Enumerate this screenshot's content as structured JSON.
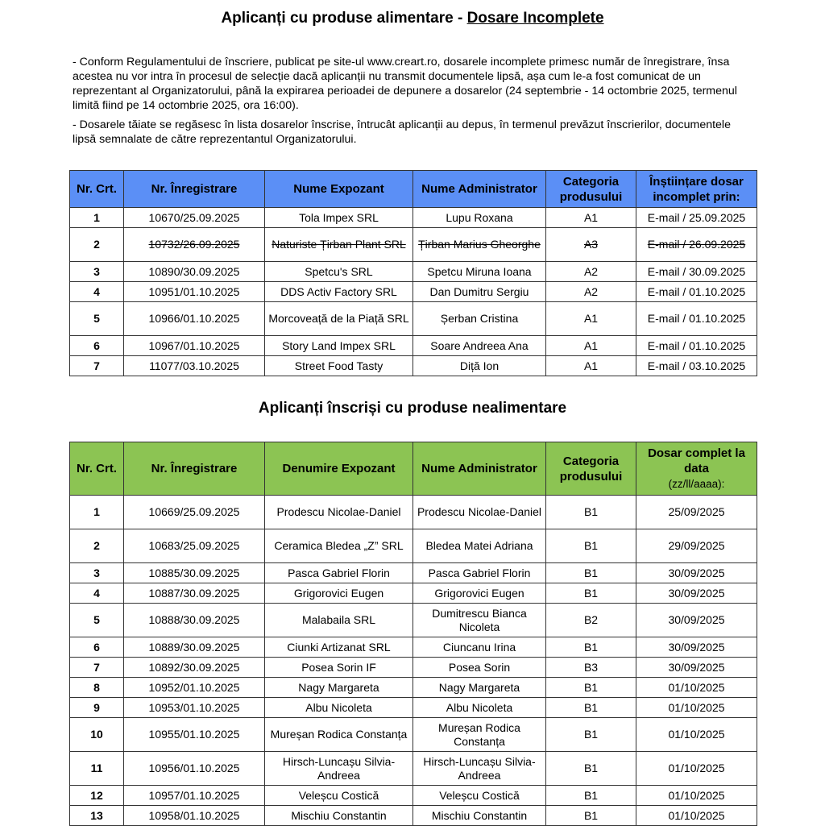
{
  "section1": {
    "title_prefix": "Aplicanți cu produse alimentare - ",
    "title_underlined": "Dosare Incomplete",
    "notes": [
      "- Conform Regulamentului de înscriere, publicat pe site-ul www.creart.ro, dosarele incomplete primesc număr de înregistrare, însa acestea nu vor intra în procesul de selecție dacă aplicanții nu transmit documentele lipsă, așa cum le-a fost comunicat de un reprezentant al Organizatorului, până la expirarea perioadei de depunere a dosarelor (24 septembrie - 14 octombrie 2025, termenul limită fiind pe 14 octombrie 2025, ora 16:00).",
      "- Dosarele tăiate se regăsesc în lista dosarelor înscrise, întrucât aplicanții au depus, în termenul prevăzut înscrierilor, documentele lipsă semnalate de către reprezentantul Organizatorului."
    ],
    "header_color": "#5b8ff6",
    "columns": [
      "Nr. Crt.",
      "Nr. Înregistrare",
      "Nume Expozant",
      "Nume Administrator",
      "Categoria produsului",
      "Înștiințare dosar incomplet prin:"
    ],
    "rows": [
      {
        "nr": "1",
        "reg": "10670/25.09.2025",
        "name": "Tola Impex SRL",
        "admin": "Lupu Roxana",
        "cat": "A1",
        "info": "E-mail / 25.09.2025",
        "struck": false
      },
      {
        "nr": "2",
        "reg": "10732/26.09.2025",
        "name": "Naturiste Țirban Plant SRL",
        "admin": "Țirban Marius Gheorghe",
        "cat": "A3",
        "info": "E-mail / 26.09.2025",
        "struck": true
      },
      {
        "nr": "3",
        "reg": "10890/30.09.2025",
        "name": "Spetcu's SRL",
        "admin": "Spetcu Miruna Ioana",
        "cat": "A2",
        "info": "E-mail / 30.09.2025",
        "struck": false
      },
      {
        "nr": "4",
        "reg": "10951/01.10.2025",
        "name": "DDS Activ Factory SRL",
        "admin": "Dan Dumitru Sergiu",
        "cat": "A2",
        "info": "E-mail / 01.10.2025",
        "struck": false
      },
      {
        "nr": "5",
        "reg": "10966/01.10.2025",
        "name": "Morcoveață de la Piață SRL",
        "admin": "Șerban Cristina",
        "cat": "A1",
        "info": "E-mail / 01.10.2025",
        "struck": false
      },
      {
        "nr": "6",
        "reg": "10967/01.10.2025",
        "name": "Story Land Impex SRL",
        "admin": "Soare Andreea Ana",
        "cat": "A1",
        "info": "E-mail / 01.10.2025",
        "struck": false
      },
      {
        "nr": "7",
        "reg": "11077/03.10.2025",
        "name": "Street Food Tasty",
        "admin": "Diță Ion",
        "cat": "A1",
        "info": "E-mail / 03.10.2025",
        "struck": false
      }
    ]
  },
  "section2": {
    "title": "Aplicanți înscriși cu produse nealimentare",
    "header_color": "#8cc453",
    "columns": [
      "Nr. Crt.",
      "Nr. Înregistrare",
      "Denumire Expozant",
      "Nume Administrator",
      "Categoria produsului",
      "Dosar complet la data"
    ],
    "date_format_note": "(zz/ll/aaaa):",
    "rows": [
      {
        "nr": "1",
        "reg": "10669/25.09.2025",
        "name": "Prodescu Nicolae-Daniel",
        "admin": "Prodescu Nicolae-Daniel",
        "cat": "B1",
        "date": "25/09/2025"
      },
      {
        "nr": "2",
        "reg": "10683/25.09.2025",
        "name": "Ceramica Bledea „Z” SRL",
        "admin": "Bledea Matei Adriana",
        "cat": "B1",
        "date": "29/09/2025"
      },
      {
        "nr": "3",
        "reg": "10885/30.09.2025",
        "name": "Pasca Gabriel Florin",
        "admin": "Pasca Gabriel Florin",
        "cat": "B1",
        "date": "30/09/2025"
      },
      {
        "nr": "4",
        "reg": "10887/30.09.2025",
        "name": "Grigorovici Eugen",
        "admin": "Grigorovici Eugen",
        "cat": "B1",
        "date": "30/09/2025"
      },
      {
        "nr": "5",
        "reg": "10888/30.09.2025",
        "name": "Malabaila SRL",
        "admin": "Dumitrescu Bianca Nicoleta",
        "cat": "B2",
        "date": "30/09/2025"
      },
      {
        "nr": "6",
        "reg": "10889/30.09.2025",
        "name": "Ciunki Artizanat SRL",
        "admin": "Ciuncanu Irina",
        "cat": "B1",
        "date": "30/09/2025"
      },
      {
        "nr": "7",
        "reg": "10892/30.09.2025",
        "name": "Posea Sorin IF",
        "admin": "Posea Sorin",
        "cat": "B3",
        "date": "30/09/2025"
      },
      {
        "nr": "8",
        "reg": "10952/01.10.2025",
        "name": "Nagy Margareta",
        "admin": "Nagy Margareta",
        "cat": "B1",
        "date": "01/10/2025"
      },
      {
        "nr": "9",
        "reg": "10953/01.10.2025",
        "name": "Albu Nicoleta",
        "admin": "Albu Nicoleta",
        "cat": "B1",
        "date": "01/10/2025"
      },
      {
        "nr": "10",
        "reg": "10955/01.10.2025",
        "name": "Mureșan Rodica Constanța",
        "admin": "Mureșan Rodica Constanța",
        "cat": "B1",
        "date": "01/10/2025"
      },
      {
        "nr": "11",
        "reg": "10956/01.10.2025",
        "name": "Hirsch-Luncașu Silvia-Andreea",
        "admin": "Hirsch-Luncașu Silvia-Andreea",
        "cat": "B1",
        "date": "01/10/2025"
      },
      {
        "nr": "12",
        "reg": "10957/01.10.2025",
        "name": "Veleșcu Costică",
        "admin": "Veleșcu Costică",
        "cat": "B1",
        "date": "01/10/2025"
      },
      {
        "nr": "13",
        "reg": "10958/01.10.2025",
        "name": "Mischiu Constantin",
        "admin": "Mischiu Constantin",
        "cat": "B1",
        "date": "01/10/2025"
      }
    ]
  }
}
